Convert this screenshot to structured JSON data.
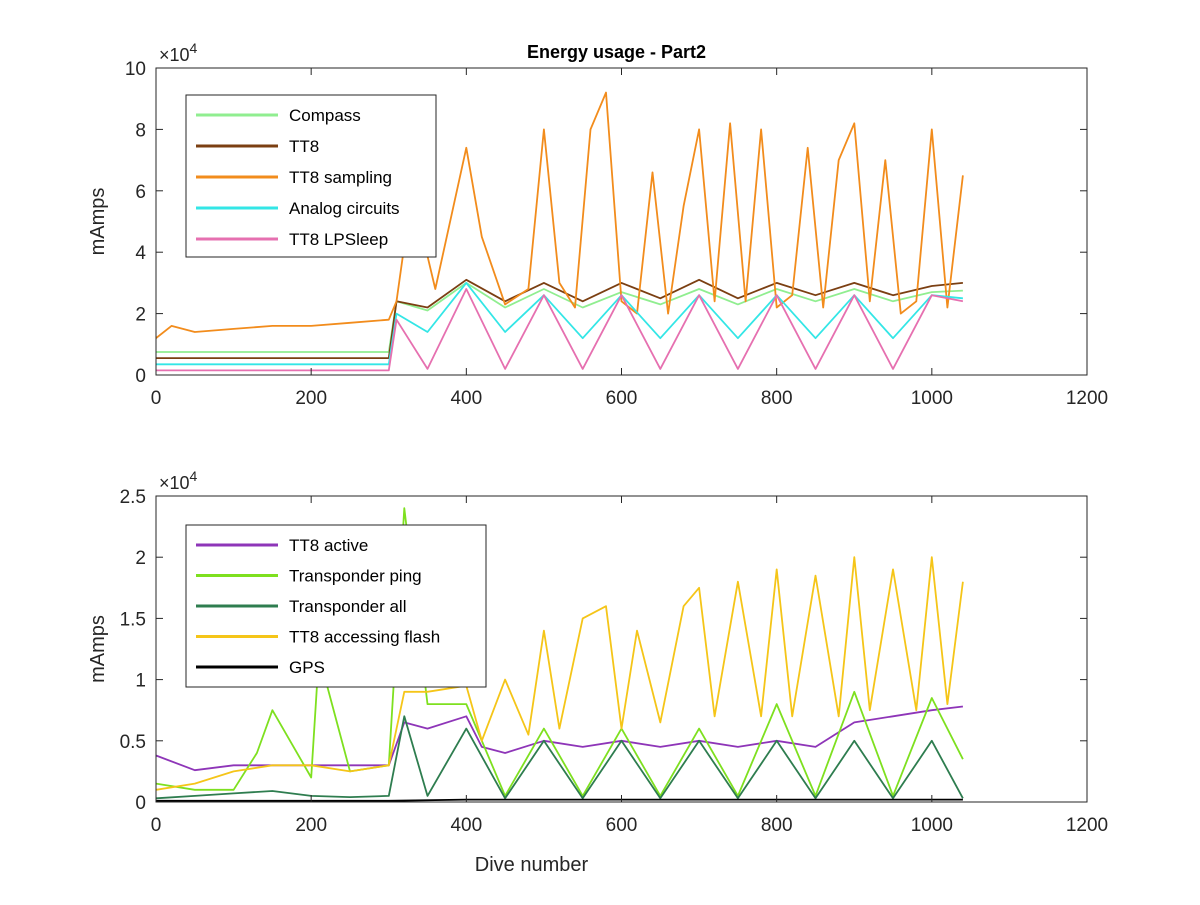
{
  "chart_data": [
    {
      "type": "line",
      "title": "Energy usage - Part2",
      "xlabel": "",
      "ylabel": "mAmps",
      "xlim": [
        0,
        1200
      ],
      "ylim": [
        0,
        100000
      ],
      "xticks": [
        0,
        200,
        400,
        600,
        800,
        1000,
        1200
      ],
      "yticks": [
        0,
        2,
        4,
        6,
        8,
        10
      ],
      "y_multiplier": "×10",
      "y_exponent": "4",
      "legend_position": "top-left",
      "grid": false,
      "colors": {
        "Compass": "#90ee90",
        "TT8": "#7b3f12",
        "TT8 sampling": "#f28c1c",
        "Analog circuits": "#33e6e6",
        "TT8 LPSleep": "#e670b0"
      },
      "series": [
        {
          "name": "Compass",
          "x": [
            0,
            100,
            200,
            300,
            310,
            350,
            400,
            450,
            500,
            550,
            600,
            650,
            700,
            750,
            800,
            850,
            900,
            950,
            1000,
            1040
          ],
          "values": [
            7500,
            7500,
            7500,
            7500,
            24000,
            21000,
            30000,
            22000,
            28000,
            22000,
            27000,
            23000,
            28000,
            23000,
            28000,
            24000,
            28000,
            24000,
            27000,
            27500
          ]
        },
        {
          "name": "TT8",
          "x": [
            0,
            100,
            200,
            300,
            310,
            350,
            400,
            450,
            500,
            550,
            600,
            650,
            700,
            750,
            800,
            850,
            900,
            950,
            1000,
            1040
          ],
          "values": [
            5500,
            5500,
            5500,
            5500,
            24000,
            22000,
            31000,
            24000,
            30000,
            24000,
            30000,
            25000,
            31000,
            25000,
            30000,
            26000,
            30000,
            26000,
            29000,
            30000
          ]
        },
        {
          "name": "TT8 sampling",
          "x": [
            0,
            20,
            50,
            100,
            150,
            200,
            250,
            300,
            310,
            330,
            360,
            400,
            420,
            450,
            480,
            500,
            520,
            540,
            560,
            580,
            600,
            620,
            640,
            660,
            680,
            700,
            720,
            740,
            760,
            780,
            800,
            820,
            840,
            860,
            880,
            900,
            920,
            940,
            960,
            980,
            1000,
            1020,
            1040
          ],
          "values": [
            12000,
            16000,
            14000,
            15000,
            16000,
            16000,
            17000,
            18000,
            24000,
            60000,
            28000,
            74000,
            45000,
            23000,
            28000,
            80000,
            30000,
            22000,
            80000,
            92000,
            24000,
            20000,
            66000,
            20000,
            55000,
            80000,
            24000,
            82000,
            24000,
            80000,
            22000,
            26000,
            74000,
            22000,
            70000,
            82000,
            24000,
            70000,
            20000,
            24000,
            80000,
            22000,
            65000
          ]
        },
        {
          "name": "Analog circuits",
          "x": [
            0,
            100,
            200,
            300,
            310,
            350,
            400,
            450,
            500,
            550,
            600,
            650,
            700,
            750,
            800,
            850,
            900,
            950,
            1000,
            1040
          ],
          "values": [
            3500,
            3500,
            3500,
            3500,
            20000,
            14000,
            30000,
            14000,
            26000,
            12000,
            26000,
            12000,
            26000,
            12000,
            26000,
            12000,
            26000,
            12000,
            26000,
            25000
          ]
        },
        {
          "name": "TT8 LPSleep",
          "x": [
            0,
            100,
            200,
            300,
            310,
            350,
            400,
            450,
            500,
            550,
            600,
            650,
            700,
            750,
            800,
            850,
            900,
            950,
            1000,
            1040
          ],
          "values": [
            1500,
            1500,
            1500,
            1500,
            18000,
            2000,
            28000,
            2000,
            26000,
            2000,
            26000,
            2000,
            26000,
            2000,
            26000,
            2000,
            26000,
            2000,
            26000,
            24000
          ]
        }
      ]
    },
    {
      "type": "line",
      "title": "",
      "xlabel": "Dive number",
      "ylabel": "mAmps",
      "xlim": [
        0,
        1200
      ],
      "ylim": [
        0,
        25000
      ],
      "xticks": [
        0,
        200,
        400,
        600,
        800,
        1000,
        1200
      ],
      "yticks": [
        "0",
        "0.5",
        "1",
        "1.5",
        "2",
        "2.5"
      ],
      "y_multiplier": "×10",
      "y_exponent": "4",
      "legend_position": "top-left",
      "grid": false,
      "colors": {
        "TT8 active": "#8e35b8",
        "Transponder ping": "#7ee01f",
        "Transponder all": "#2e7d4f",
        "TT8 accessing flash": "#f5c518",
        "GPS": "#000000"
      },
      "series": [
        {
          "name": "TT8 active",
          "x": [
            0,
            50,
            100,
            150,
            200,
            250,
            300,
            320,
            350,
            400,
            420,
            450,
            500,
            550,
            600,
            650,
            700,
            750,
            800,
            850,
            900,
            950,
            1000,
            1040
          ],
          "values": [
            3800,
            2600,
            3000,
            3000,
            3000,
            3000,
            3000,
            6500,
            6000,
            7000,
            4500,
            4000,
            5000,
            4500,
            5000,
            4500,
            5000,
            4500,
            5000,
            4500,
            6500,
            7000,
            7500,
            7800
          ]
        },
        {
          "name": "Transponder ping",
          "x": [
            0,
            50,
            100,
            130,
            150,
            200,
            210,
            250,
            300,
            320,
            350,
            400,
            450,
            500,
            550,
            600,
            650,
            700,
            750,
            800,
            850,
            900,
            950,
            1000,
            1040
          ],
          "values": [
            1500,
            1000,
            1000,
            4000,
            7500,
            2000,
            12000,
            2500,
            3000,
            24000,
            8000,
            8000,
            500,
            6000,
            500,
            6000,
            500,
            6000,
            500,
            8000,
            500,
            9000,
            500,
            8500,
            3500
          ]
        },
        {
          "name": "Transponder all",
          "x": [
            0,
            50,
            100,
            150,
            200,
            250,
            300,
            320,
            350,
            400,
            450,
            500,
            550,
            600,
            650,
            700,
            750,
            800,
            850,
            900,
            950,
            1000,
            1040
          ],
          "values": [
            300,
            500,
            700,
            900,
            500,
            400,
            500,
            7000,
            500,
            6000,
            300,
            5000,
            300,
            5000,
            300,
            5000,
            300,
            5000,
            300,
            5000,
            300,
            5000,
            300
          ]
        },
        {
          "name": "TT8 accessing flash",
          "x": [
            0,
            50,
            100,
            150,
            200,
            250,
            300,
            320,
            350,
            400,
            420,
            450,
            480,
            500,
            520,
            550,
            580,
            600,
            620,
            650,
            680,
            700,
            720,
            750,
            780,
            800,
            820,
            850,
            880,
            900,
            920,
            950,
            980,
            1000,
            1020,
            1040
          ],
          "values": [
            1000,
            1500,
            2500,
            3000,
            3000,
            2500,
            3000,
            9000,
            9000,
            9500,
            5000,
            10000,
            5500,
            14000,
            6000,
            15000,
            16000,
            6000,
            14000,
            6500,
            16000,
            17500,
            7000,
            18000,
            7000,
            19000,
            7000,
            18500,
            7000,
            20000,
            7500,
            19000,
            7500,
            20000,
            8000,
            18000
          ]
        },
        {
          "name": "GPS",
          "x": [
            0,
            100,
            200,
            300,
            400,
            500,
            600,
            700,
            800,
            900,
            1000,
            1040
          ],
          "values": [
            100,
            100,
            100,
            100,
            200,
            200,
            200,
            200,
            200,
            200,
            200,
            200
          ]
        }
      ]
    }
  ]
}
